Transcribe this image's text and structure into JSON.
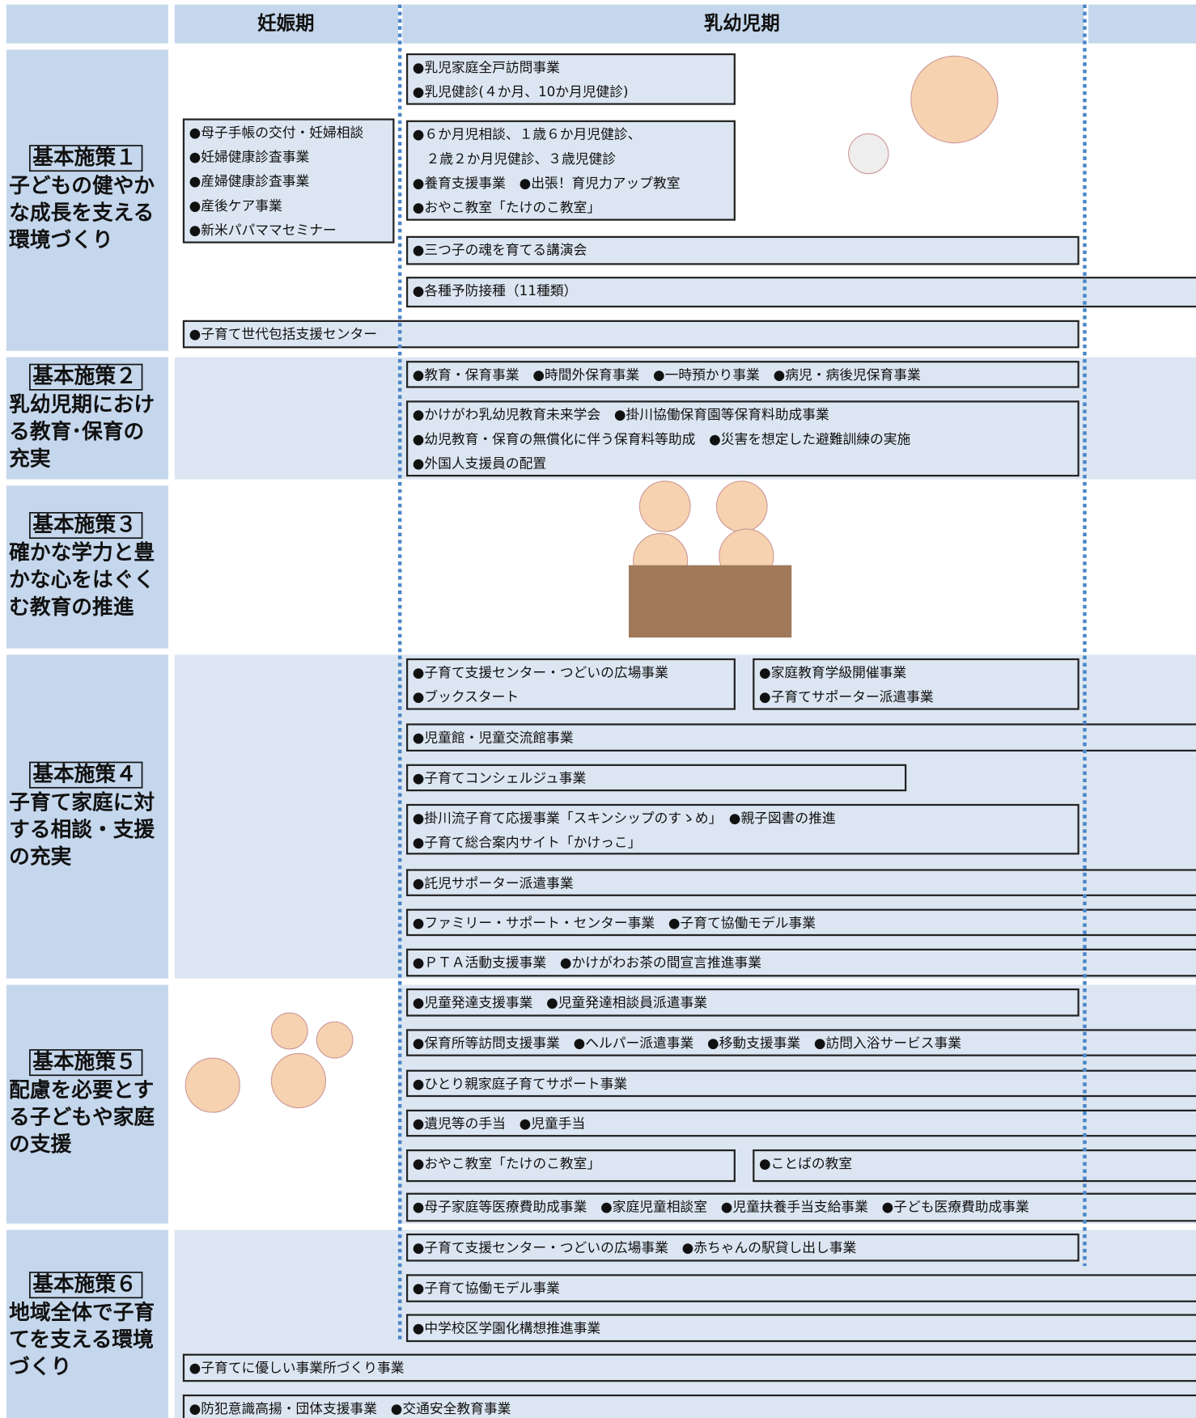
{
  "header": {
    "columns": [
      "妊娠期",
      "乳幼児期"
    ]
  },
  "policies": [
    {
      "label": "基本施策１",
      "title": [
        "子どもの健やか",
        "な成長を支える",
        "環境づくり"
      ],
      "boxes": [
        {
          "lines": [
            "●乳児家庭全戸訪問事業",
            "●乳児健診(４か月、10か月児健診)"
          ]
        },
        {
          "lines": [
            "●母子手帳の交付・妊婦相談",
            "●妊婦健康診査事業",
            "●産婦健康診査事業",
            "●産後ケア事業",
            "●新米パパママセミナー"
          ]
        },
        {
          "lines": [
            "●６か月児相談、１歳６か月児健診、",
            "　２歳２か月児健診、３歳児健診",
            "●養育支援事業　●出張！育児力アップ教室",
            "●おやこ教室「たけのこ教室」"
          ]
        },
        {
          "lines": [
            "●三つ子の魂を育てる講演会"
          ]
        },
        {
          "lines": [
            "●各種予防接種（11種類）"
          ]
        },
        {
          "lines": [
            "●子育て世代包括支援センター"
          ]
        }
      ]
    },
    {
      "label": "基本施策２",
      "title": [
        "乳幼児期におけ",
        "る教育･保育の",
        "充実"
      ],
      "boxes": [
        {
          "lines": [
            "●教育・保育事業　●時間外保育事業　●一時預かり事業　●病児・病後児保育事業"
          ]
        },
        {
          "lines": [
            "●かけがわ乳幼児教育未来学会　●掛川協働保育園等保育料助成事業",
            "●幼児教育・保育の無償化に伴う保育料等助成　●災害を想定した避難訓練の実施",
            "●外国人支援員の配置"
          ]
        }
      ]
    },
    {
      "label": "基本施策３",
      "title": [
        "確かな学力と豊",
        "かな心をはぐく",
        "む教育の推進"
      ],
      "boxes": []
    },
    {
      "label": "基本施策４",
      "title": [
        "子育て家庭に対",
        "する相談・支援",
        "の充実"
      ],
      "boxes": [
        {
          "lines": [
            "●子育て支援センター・つどいの広場事業",
            "●ブックスタート"
          ]
        },
        {
          "lines": [
            "●家庭教育学級開催事業",
            "●子育てサポーター派遣事業"
          ]
        },
        {
          "lines": [
            "●児童館・児童交流館事業"
          ]
        },
        {
          "lines": [
            "●子育てコンシェルジュ事業"
          ]
        },
        {
          "lines": [
            "●掛川流子育て応援事業「スキンシップのすゝめ」　●親子図書の推進",
            "●子育て総合案内サイト「かけっこ」"
          ]
        },
        {
          "lines": [
            "●託児サポーター派遣事業"
          ]
        },
        {
          "lines": [
            "●ファミリー・サポート・センター事業　●子育て協働モデル事業"
          ]
        },
        {
          "lines": [
            "●ＰＴＡ活動支援事業　●かけがわお茶の間宣言推進事業"
          ]
        }
      ]
    },
    {
      "label": "基本施策５",
      "title": [
        "配慮を必要とす",
        "る子どもや家庭",
        "の支援"
      ],
      "boxes": [
        {
          "lines": [
            "●児童発達支援事業　●児童発達相談員派遣事業"
          ]
        },
        {
          "lines": [
            "●保育所等訪問支援事業　●ヘルパー派遣事業　●移動支援事業　●訪問入浴サービス事業"
          ]
        },
        {
          "lines": [
            "●ひとり親家庭子育てサポート事業"
          ]
        },
        {
          "lines": [
            "●遺児等の手当　●児童手当"
          ]
        },
        {
          "lines": [
            "●おやこ教室「たけのこ教室」"
          ]
        },
        {
          "lines": [
            "●ことばの教室"
          ]
        },
        {
          "lines": [
            "●母子家庭等医療費助成事業　●家庭児童相談室　●児童扶養手当支給事業　●子ども医療費助成事業"
          ]
        }
      ]
    },
    {
      "label": "基本施策６",
      "title": [
        "地域全体で子育",
        "てを支える環境",
        "づくり"
      ],
      "boxes": [
        {
          "lines": [
            "●子育て支援センター・つどいの広場事業　●赤ちゃんの駅貸し出し事業"
          ]
        },
        {
          "lines": [
            "●子育て協働モデル事業"
          ]
        },
        {
          "lines": [
            "●中学校区学園化構想推進事業"
          ]
        },
        {
          "lines": [
            "●子育てに優しい事業所づくり事業"
          ]
        },
        {
          "lines": [
            "●防犯意識高揚・団体支援事業　●交通安全教育事業"
          ]
        }
      ]
    }
  ]
}
